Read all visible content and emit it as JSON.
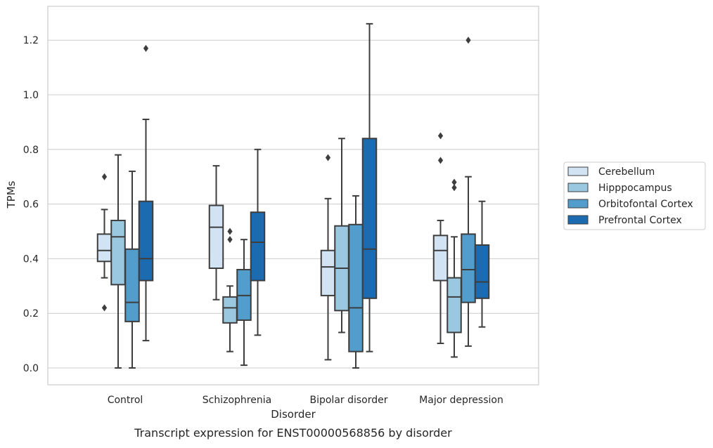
{
  "chart_data": {
    "type": "box",
    "title": "",
    "caption": "Transcript expression for ENST00000568856 by disorder",
    "xlabel": "Disorder",
    "ylabel": "TPMs",
    "categories": [
      "Control",
      "Schizophrenia",
      "Bipolar disorder",
      "Major depression"
    ],
    "ylim": [
      -0.06,
      1.32
    ],
    "yticks": [
      0.0,
      0.2,
      0.4,
      0.6,
      0.8,
      1.0,
      1.2
    ],
    "ytick_labels": [
      "0.0",
      "0.2",
      "0.4",
      "0.6",
      "0.8",
      "1.0",
      "1.2"
    ],
    "grid": "horizontal",
    "legend_position": "right",
    "series": [
      {
        "name": "Cerebellum",
        "color": "#d2e3f3",
        "boxes": [
          {
            "whisker_low": 0.33,
            "q1": 0.39,
            "median": 0.43,
            "q3": 0.49,
            "whisker_high": 0.58,
            "outliers": [
              0.7,
              0.22
            ]
          },
          {
            "whisker_low": 0.25,
            "q1": 0.365,
            "median": 0.515,
            "q3": 0.595,
            "whisker_high": 0.74,
            "outliers": []
          },
          {
            "whisker_low": 0.03,
            "q1": 0.265,
            "median": 0.37,
            "q3": 0.43,
            "whisker_high": 0.62,
            "outliers": [
              0.77
            ]
          },
          {
            "whisker_low": 0.09,
            "q1": 0.32,
            "median": 0.43,
            "q3": 0.485,
            "whisker_high": 0.54,
            "outliers": [
              0.85,
              0.76
            ]
          }
        ]
      },
      {
        "name": "Hipppocampus",
        "color": "#9ac8e0",
        "boxes": [
          {
            "whisker_low": 0.0,
            "q1": 0.305,
            "median": 0.48,
            "q3": 0.54,
            "whisker_high": 0.78,
            "outliers": []
          },
          {
            "whisker_low": 0.06,
            "q1": 0.165,
            "median": 0.22,
            "q3": 0.26,
            "whisker_high": 0.3,
            "outliers": [
              0.5,
              0.47
            ]
          },
          {
            "whisker_low": 0.13,
            "q1": 0.21,
            "median": 0.365,
            "q3": 0.52,
            "whisker_high": 0.84,
            "outliers": []
          },
          {
            "whisker_low": 0.04,
            "q1": 0.13,
            "median": 0.26,
            "q3": 0.33,
            "whisker_high": 0.48,
            "outliers": [
              0.68,
              0.66
            ]
          }
        ]
      },
      {
        "name": "Orbitofontal Cortex",
        "color": "#529dcc",
        "boxes": [
          {
            "whisker_low": 0.0,
            "q1": 0.17,
            "median": 0.24,
            "q3": 0.435,
            "whisker_high": 0.72,
            "outliers": []
          },
          {
            "whisker_low": 0.01,
            "q1": 0.175,
            "median": 0.265,
            "q3": 0.36,
            "whisker_high": 0.47,
            "outliers": []
          },
          {
            "whisker_low": 0.0,
            "q1": 0.06,
            "median": 0.22,
            "q3": 0.525,
            "whisker_high": 0.63,
            "outliers": []
          },
          {
            "whisker_low": 0.08,
            "q1": 0.24,
            "median": 0.36,
            "q3": 0.49,
            "whisker_high": 0.7,
            "outliers": [
              1.2
            ]
          }
        ]
      },
      {
        "name": "Prefrontal Cortex",
        "color": "#1c6aaf",
        "boxes": [
          {
            "whisker_low": 0.1,
            "q1": 0.32,
            "median": 0.4,
            "q3": 0.61,
            "whisker_high": 0.91,
            "outliers": [
              1.17
            ]
          },
          {
            "whisker_low": 0.12,
            "q1": 0.32,
            "median": 0.46,
            "q3": 0.57,
            "whisker_high": 0.8,
            "outliers": []
          },
          {
            "whisker_low": 0.06,
            "q1": 0.255,
            "median": 0.435,
            "q3": 0.84,
            "whisker_high": 1.26,
            "outliers": []
          },
          {
            "whisker_low": 0.15,
            "q1": 0.255,
            "median": 0.315,
            "q3": 0.45,
            "whisker_high": 0.61,
            "outliers": []
          }
        ]
      }
    ]
  }
}
